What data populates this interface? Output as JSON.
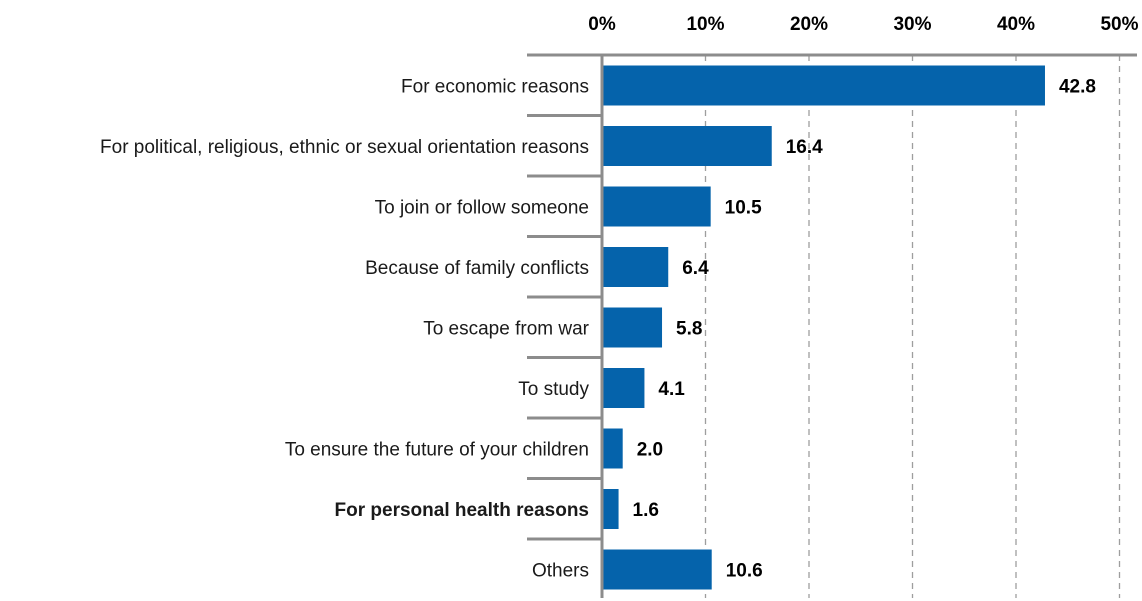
{
  "chart_data": {
    "type": "bar",
    "orientation": "horizontal",
    "categories": [
      "For economic reasons",
      "For political, religious, ethnic or sexual orientation reasons",
      "To join or follow someone",
      "Because of family conflicts",
      "To escape from war",
      "To study",
      "To ensure the future of your children",
      "For personal health reasons",
      "Others"
    ],
    "values": [
      42.8,
      16.4,
      10.5,
      6.4,
      5.8,
      4.1,
      2.0,
      1.6,
      10.6
    ],
    "value_labels": [
      "42.8",
      "16.4",
      "10.5",
      "6.4",
      "5.8",
      "4.1",
      "2.0",
      "1.6",
      "10.6"
    ],
    "highlighted_category": "For personal health reasons",
    "xlim": [
      0,
      50
    ],
    "x_ticks": [
      "0%",
      "10%",
      "20%",
      "30%",
      "40%",
      "50%"
    ],
    "axis_position": "top",
    "grid": "vertical dashed",
    "colors": {
      "bar": "#0563ab",
      "highlight_text": "#0563ab",
      "axis": "#8c8c8c",
      "grid": "#9e9e9e"
    }
  }
}
